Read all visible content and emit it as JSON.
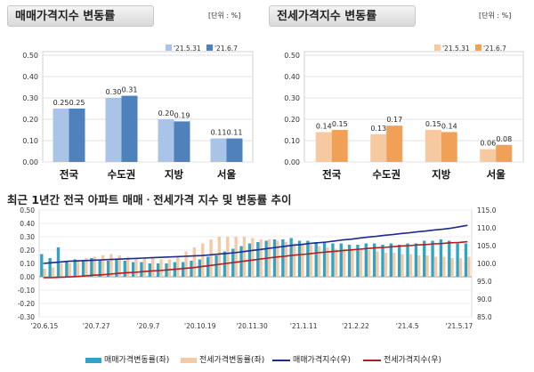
{
  "chart_data": [
    {
      "type": "bar",
      "title": "매매가격지수 변동률",
      "unit": "[단위 : %]",
      "categories": [
        "전국",
        "수도권",
        "지방",
        "서울"
      ],
      "series": [
        {
          "name": "'21.5.31",
          "values": [
            0.25,
            0.3,
            0.2,
            0.11
          ],
          "color": "#a9c4e6"
        },
        {
          "name": "'21.6.7",
          "values": [
            0.25,
            0.31,
            0.19,
            0.11
          ],
          "color": "#4f81bd"
        }
      ],
      "data_labels": [
        [
          "0.25",
          "0.30",
          "0.20",
          "0.11"
        ],
        [
          "0.25",
          "0.31",
          "0.19",
          "0.11"
        ]
      ],
      "yticks": [
        "0.00",
        "0.10",
        "0.20",
        "0.30",
        "0.40",
        "0.50"
      ],
      "ylim": [
        0,
        0.5
      ],
      "grid": true,
      "legend": "top-right"
    },
    {
      "type": "bar",
      "title": "전세가격지수 변동률",
      "unit": "[단위 : %]",
      "categories": [
        "전국",
        "수도권",
        "지방",
        "서울"
      ],
      "series": [
        {
          "name": "'21.5.31",
          "values": [
            0.14,
            0.13,
            0.15,
            0.06
          ],
          "color": "#f7c9a0"
        },
        {
          "name": "'21.6.7",
          "values": [
            0.15,
            0.17,
            0.14,
            0.08
          ],
          "color": "#f0a057"
        }
      ],
      "data_labels": [
        [
          "0.14",
          "0.13",
          "0.15",
          "0.06"
        ],
        [
          "0.15",
          "0.17",
          "0.14",
          "0.08"
        ]
      ],
      "yticks": [
        "0.00",
        "0.10",
        "0.20",
        "0.30",
        "0.40",
        "0.50"
      ],
      "ylim": [
        0,
        0.5
      ],
      "grid": true,
      "legend": "top-right"
    },
    {
      "type": "bar",
      "title": "최근 1년간 전국 아파트 매매ㆍ전세가격 지수 및 변동률 추이",
      "x_labels": [
        "'20.6.15",
        "'20.7.27",
        "'20.9.7",
        "'20.10.19",
        "'20.11.30",
        "'21.1.11",
        "'21.2.22",
        "'21.4.5",
        "'21.5.17"
      ],
      "y_left_ticks": [
        "-0.30",
        "-0.20",
        "-0.10",
        "0.00",
        "0.10",
        "0.20",
        "0.30",
        "0.40",
        "0.50"
      ],
      "y_right_ticks": [
        "85.0",
        "90.0",
        "95.0",
        "100.0",
        "105.0",
        "110.0",
        "115.0"
      ],
      "ylim_left": [
        -0.3,
        0.5
      ],
      "ylim_right": [
        85,
        115
      ],
      "series": [
        {
          "name": "매매가격변동률(좌)",
          "axis": "left",
          "kind": "bar",
          "color": "#2fa4c7",
          "values": [
            0.17,
            0.14,
            0.22,
            0.12,
            0.13,
            0.12,
            0.14,
            0.13,
            0.12,
            0.13,
            0.12,
            0.11,
            0.11,
            0.1,
            0.1,
            0.1,
            0.11,
            0.11,
            0.12,
            0.13,
            0.15,
            0.16,
            0.19,
            0.21,
            0.23,
            0.25,
            0.26,
            0.27,
            0.28,
            0.28,
            0.29,
            0.27,
            0.27,
            0.26,
            0.26,
            0.25,
            0.25,
            0.24,
            0.24,
            0.25,
            0.25,
            0.24,
            0.25,
            0.24,
            0.25,
            0.25,
            0.27,
            0.27,
            0.28,
            0.27,
            0.25,
            0.25
          ]
        },
        {
          "name": "전세가격변동률(좌)",
          "axis": "left",
          "kind": "bar",
          "color": "#f5c9a5",
          "values": [
            0.06,
            0.07,
            0.1,
            0.1,
            0.12,
            0.14,
            0.15,
            0.16,
            0.17,
            0.16,
            0.15,
            0.14,
            0.14,
            0.14,
            0.13,
            0.13,
            0.15,
            0.19,
            0.22,
            0.25,
            0.28,
            0.3,
            0.3,
            0.3,
            0.3,
            0.29,
            0.28,
            0.28,
            0.27,
            0.26,
            0.25,
            0.25,
            0.24,
            0.23,
            0.22,
            0.21,
            0.21,
            0.21,
            0.21,
            0.2,
            0.19,
            0.18,
            0.18,
            0.17,
            0.17,
            0.16,
            0.16,
            0.15,
            0.15,
            0.14,
            0.14,
            0.15
          ]
        },
        {
          "name": "매매가격지수(우)",
          "axis": "right",
          "kind": "line",
          "color": "#1f2a8c",
          "values": [
            100.0,
            100.2,
            100.4,
            100.6,
            100.7,
            100.8,
            100.9,
            101.0,
            101.1,
            101.2,
            101.3,
            101.4,
            101.5,
            101.6,
            101.7,
            101.8,
            101.9,
            102.0,
            102.1,
            102.2,
            102.4,
            102.6,
            102.8,
            103.0,
            103.3,
            103.6,
            103.9,
            104.2,
            104.5,
            104.8,
            105.1,
            105.3,
            105.6,
            105.8,
            106.0,
            106.3,
            106.6,
            106.8,
            107.1,
            107.4,
            107.6,
            107.9,
            108.1,
            108.4,
            108.6,
            108.9,
            109.1,
            109.4,
            109.6,
            109.9,
            110.3,
            110.7
          ]
        },
        {
          "name": "전세가격지수(우)",
          "axis": "right",
          "kind": "line",
          "color": "#b01e23",
          "values": [
            96.0,
            96.0,
            96.1,
            96.2,
            96.3,
            96.5,
            96.7,
            96.8,
            97.0,
            97.2,
            97.4,
            97.5,
            97.7,
            97.9,
            98.0,
            98.2,
            98.4,
            98.6,
            98.8,
            99.1,
            99.4,
            99.7,
            100.0,
            100.3,
            100.6,
            100.9,
            101.2,
            101.5,
            101.8,
            102.0,
            102.3,
            102.5,
            102.7,
            103.0,
            103.2,
            103.4,
            103.6,
            103.8,
            104.0,
            104.2,
            104.4,
            104.5,
            104.7,
            104.9,
            105.0,
            105.2,
            105.3,
            105.5,
            105.6,
            105.8,
            105.9,
            106.1
          ]
        }
      ]
    }
  ]
}
